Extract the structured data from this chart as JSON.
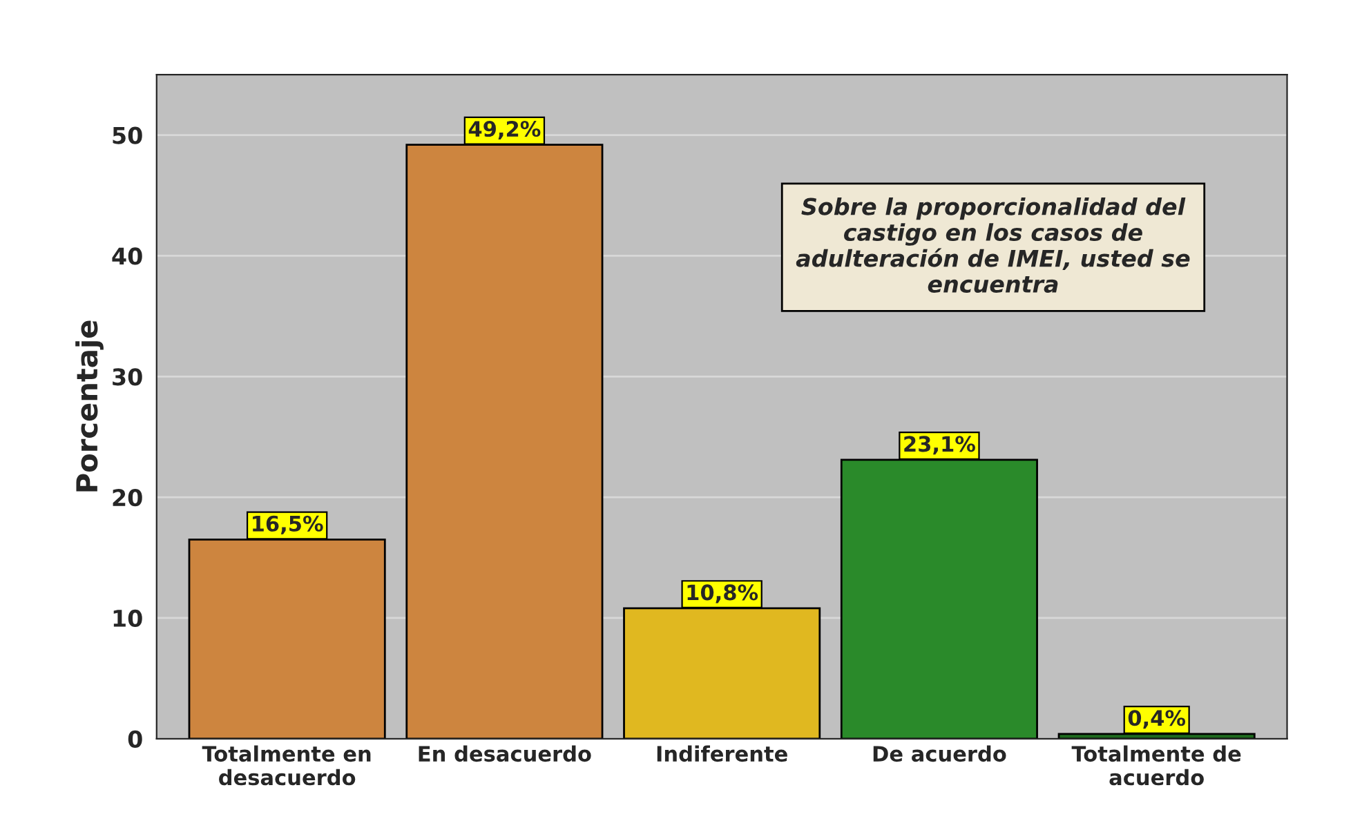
{
  "chart_data": {
    "type": "bar",
    "categories": [
      "Totalmente en desacuerdo",
      "En desacuerdo",
      "Indiferente",
      "De acuerdo",
      "Totalmente de acuerdo"
    ],
    "values": [
      16.5,
      49.2,
      10.8,
      23.1,
      0.4
    ],
    "colors": [
      "#cd853f",
      "#cd853f",
      "#e0b820",
      "#2a8a2a",
      "#1e6b1e"
    ],
    "value_labels": [
      "16,5%",
      "49,2%",
      "10,8%",
      "23,1%",
      "0,4%"
    ],
    "ylabel": "Porcentaje",
    "ylim": [
      0,
      55
    ],
    "yticks": [
      0,
      10,
      20,
      30,
      40,
      50
    ],
    "grid": "y",
    "annotations": [
      "Sobre la proporcionalidad del castigo en los casos de adulteración de IMEI, usted se encuentra"
    ]
  }
}
